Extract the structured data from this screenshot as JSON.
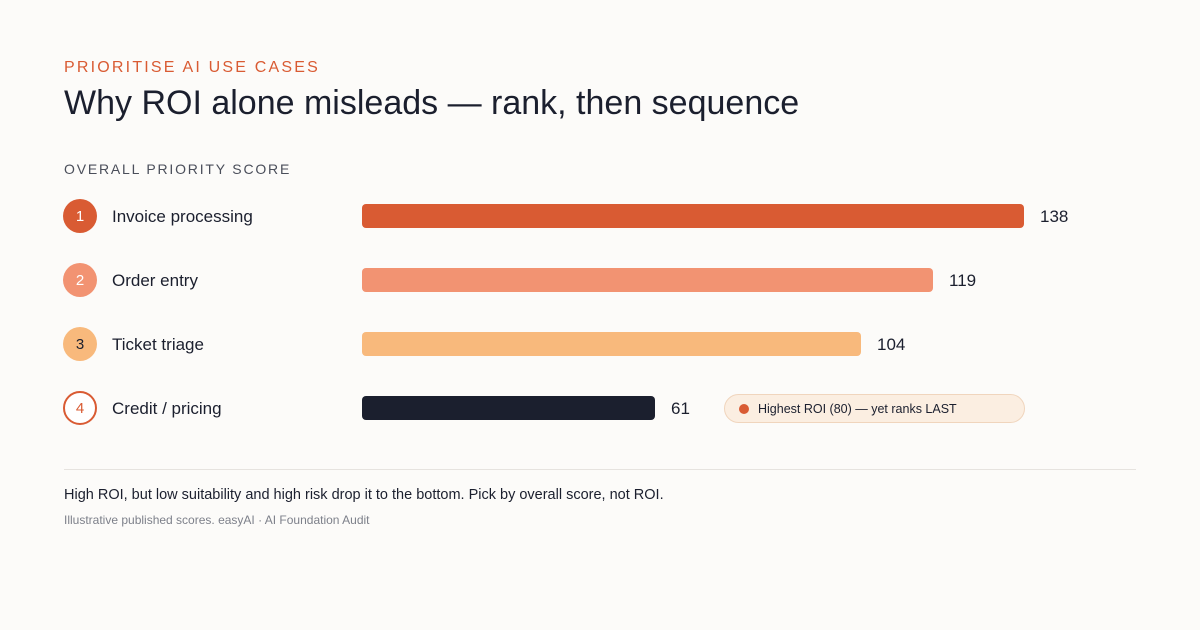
{
  "header": {
    "eyebrow": "PRIORITISE AI USE CASES",
    "title": "Why ROI alone misleads — rank, then sequence"
  },
  "chart_data": {
    "type": "bar",
    "orientation": "horizontal",
    "title": "OVERALL PRIORITY SCORE",
    "categories": [
      "Invoice processing",
      "Order entry",
      "Ticket triage",
      "Credit / pricing"
    ],
    "ranks": [
      "1",
      "2",
      "3",
      "4"
    ],
    "values": [
      138,
      119,
      104,
      61
    ],
    "value_labels": [
      "138",
      "119",
      "104",
      "61"
    ],
    "bar_colors": [
      "#d95b33",
      "#f29372",
      "#f8b97c",
      "#1b1f2e"
    ],
    "badge_styles": [
      {
        "fill": "#d95b33",
        "text": "#ffffff",
        "border": "none"
      },
      {
        "fill": "#f29372",
        "text": "#ffffff",
        "border": "none"
      },
      {
        "fill": "#f8b97c",
        "text": "#1b1f2e",
        "border": "none"
      },
      {
        "fill": "#ffffff",
        "text": "#d95b33",
        "border": "#d95b33"
      }
    ],
    "xlim": [
      0,
      138
    ],
    "grid": false,
    "annotation": {
      "category": "Credit / pricing",
      "text": "Highest ROI (80) — yet ranks LAST",
      "dot_color": "#d95b33"
    }
  },
  "footer": {
    "note": "High ROI, but low suitability and high risk drop it to the bottom. Pick by overall score, not ROI.",
    "source": "Illustrative published scores. easyAI · AI Foundation Audit"
  }
}
